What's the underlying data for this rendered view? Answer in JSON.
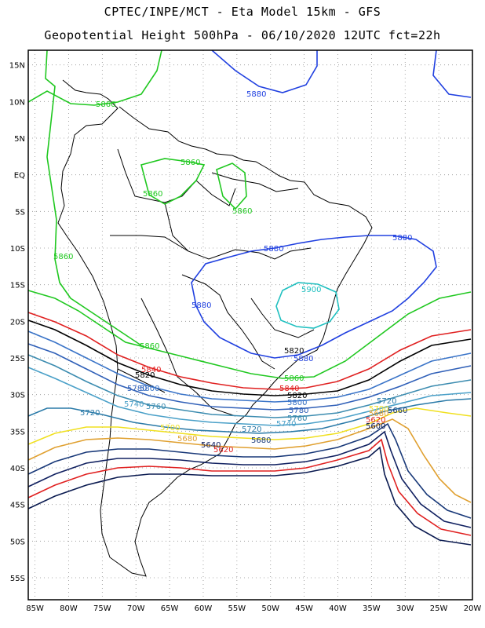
{
  "header": {
    "line1": "CPTEC/INPE/MCT - Eta Model 15km - GFS",
    "line2": "Geopotential Height 500hPa - 06/10/2020 12UTC fct=22h"
  },
  "map_data": {
    "type": "contour-map",
    "variable": "Geopotential Height 500hPa",
    "lon_range": [
      -86,
      -20
    ],
    "lat_range": [
      -58,
      17
    ],
    "lon_ticks": [
      "85W",
      "80W",
      "75W",
      "70W",
      "65W",
      "60W",
      "55W",
      "50W",
      "45W",
      "40W",
      "35W",
      "30W",
      "25W",
      "20W"
    ],
    "lat_ticks": [
      "15N",
      "10N",
      "5N",
      "EQ",
      "5S",
      "10S",
      "15S",
      "20S",
      "25S",
      "30S",
      "35S",
      "40S",
      "45S",
      "50S",
      "55S"
    ],
    "grid": "dotted",
    "contours": [
      {
        "level": "5900",
        "color": "#20c0c0"
      },
      {
        "level": "5880",
        "color": "#2040e0"
      },
      {
        "level": "5860",
        "color": "#20c820"
      },
      {
        "level": "5840",
        "color": "#e02020"
      },
      {
        "level": "5820",
        "color": "#000000"
      },
      {
        "level": "5800",
        "color": "#3a74c8"
      },
      {
        "level": "5780",
        "color": "#3060b8"
      },
      {
        "level": "5760",
        "color": "#3c8cb0"
      },
      {
        "level": "5740",
        "color": "#4aa0c8"
      },
      {
        "level": "5720",
        "color": "#2a7aa8"
      },
      {
        "level": "5700",
        "color": "#f0e020"
      },
      {
        "level": "5680",
        "color": "#e0a030"
      },
      {
        "level": "5660",
        "color": "#183878"
      },
      {
        "level": "5640",
        "color": "#102060"
      },
      {
        "level": "5620",
        "color": "#e02020"
      },
      {
        "level": "5600",
        "color": "#0a1a50"
      }
    ]
  }
}
